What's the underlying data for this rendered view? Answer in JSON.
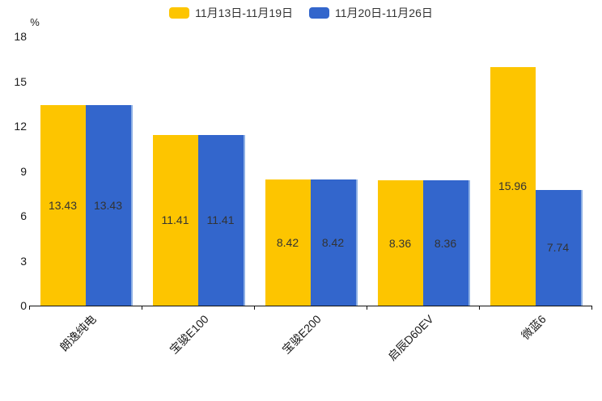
{
  "chart_data": {
    "type": "bar",
    "title": "",
    "categories": [
      "朗逸纯电",
      "宝骏E100",
      "宝骏E200",
      "启辰D60EV",
      "微蓝6"
    ],
    "series": [
      {
        "name": "11月13日-11月19日",
        "color": "#FDC500",
        "values": [
          13.43,
          11.41,
          8.42,
          8.36,
          15.96
        ]
      },
      {
        "name": "11月20日-11月26日",
        "color": "#3366CC",
        "edge_color": "#8EB0E4",
        "values": [
          13.43,
          11.41,
          8.42,
          8.36,
          7.74
        ]
      }
    ],
    "xlabel": "",
    "ylabel": "%",
    "ylim": [
      0,
      18
    ],
    "y_ticks": [
      0,
      3,
      6,
      9,
      12,
      15,
      18
    ],
    "grid": false,
    "legend_position": "top-center",
    "value_label_position": "inside-middle",
    "value_label_decimals": 2
  },
  "colors": {
    "background": "#ffffff",
    "axis": "#111111",
    "value_text": "#333333",
    "tick_text": "#1a1a1a"
  }
}
